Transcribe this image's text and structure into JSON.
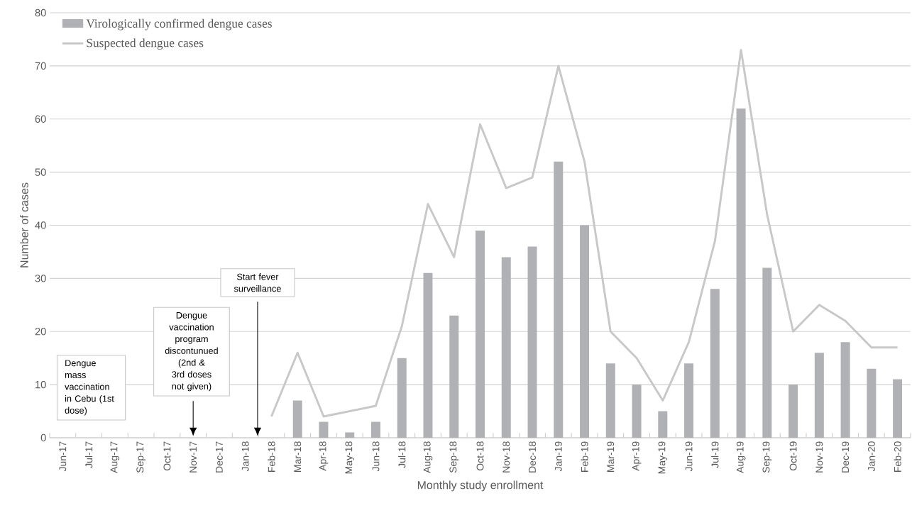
{
  "chart_data": {
    "type": "bar",
    "xlabel": "Monthly study enrollment",
    "ylabel": "Number of cases",
    "categories": [
      "Jun-17",
      "Jul-17",
      "Aug-17",
      "Sep-17",
      "Oct-17",
      "Nov-17",
      "Dec-17",
      "Jan-18",
      "Feb-18",
      "Mar-18",
      "Apr-18",
      "May-18",
      "Jun-18",
      "Jul-18",
      "Aug-18",
      "Sep-18",
      "Oct-18",
      "Nov-18",
      "Dec-18",
      "Jan-19",
      "Feb-19",
      "Mar-19",
      "Apr-19",
      "May-19",
      "Jun-19",
      "Jul-19",
      "Aug-19",
      "Sep-19",
      "Oct-19",
      "Nov-19",
      "Dec-19",
      "Jan-20",
      "Feb-20"
    ],
    "series": [
      {
        "name": "Virologically confirmed dengue cases",
        "color": "#b0b1b5",
        "values": [
          null,
          null,
          null,
          null,
          null,
          null,
          null,
          null,
          null,
          7,
          3,
          1,
          3,
          15,
          31,
          23,
          39,
          34,
          36,
          52,
          40,
          14,
          10,
          5,
          14,
          28,
          62,
          32,
          10,
          16,
          18,
          13,
          11
        ]
      },
      {
        "name": "Suspected dengue cases",
        "type": "line",
        "color": "#c8c8c8",
        "values": [
          null,
          null,
          null,
          null,
          null,
          null,
          null,
          null,
          4,
          16,
          4,
          5,
          6,
          21,
          44,
          34,
          59,
          47,
          49,
          70,
          52,
          20,
          15,
          7,
          18,
          37,
          73,
          42,
          20,
          25,
          22,
          17,
          17
        ]
      }
    ],
    "ylim": [
      0,
      80
    ],
    "yticks": [
      0,
      10,
      20,
      30,
      40,
      50,
      60,
      70,
      80
    ],
    "grid": "y",
    "legend": "top left",
    "annotations": [
      "Dengue mass vaccination in Cebu (1st dose)",
      "Dengue vaccination program discontunued (2nd & 3rd doses not given)",
      "Start fever surveillance"
    ]
  }
}
